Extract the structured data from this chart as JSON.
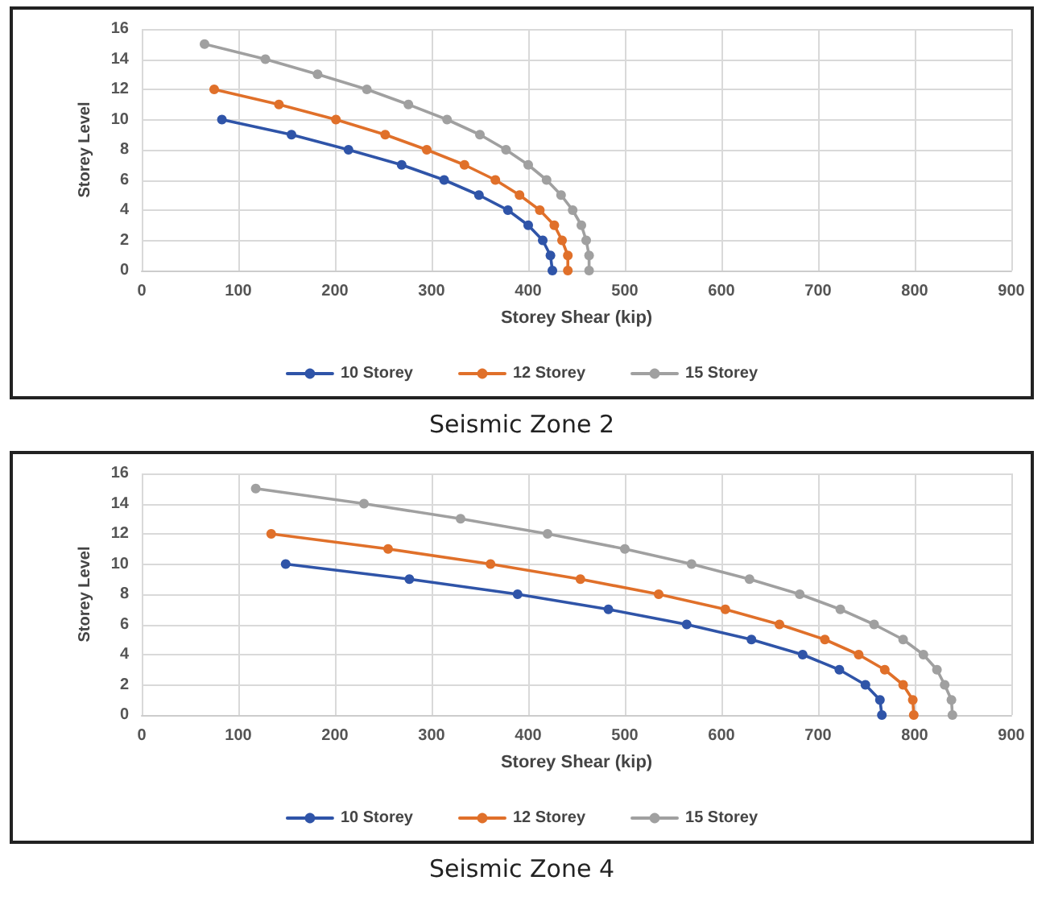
{
  "chart_data": [
    {
      "type": "line",
      "title": "Seismic Zone 2",
      "xlabel": "Storey Shear (kip)",
      "ylabel": "Storey Level",
      "xlim": [
        0,
        900
      ],
      "xticks": [
        0,
        100,
        200,
        300,
        400,
        500,
        600,
        700,
        800,
        900
      ],
      "ylim": [
        0,
        16
      ],
      "yticks": [
        0,
        2,
        4,
        6,
        8,
        10,
        12,
        14,
        16
      ],
      "grid": true,
      "legend": "bottom",
      "marker": "circle",
      "line_style": "solid",
      "series": [
        {
          "name": "10 Storey",
          "color": "#2f54a8",
          "x": [
            83,
            155,
            214,
            269,
            313,
            349,
            379,
            400,
            415,
            423,
            425
          ],
          "values": [
            10,
            9,
            8,
            7,
            6,
            5,
            4,
            3,
            2,
            1,
            0
          ]
        },
        {
          "name": "12 Storey",
          "color": "#e0702a",
          "x": [
            75,
            142,
            201,
            252,
            295,
            334,
            366,
            391,
            412,
            427,
            435,
            441,
            441
          ],
          "values": [
            12,
            11,
            10,
            9,
            8,
            7,
            6,
            5,
            4,
            3,
            2,
            1,
            0
          ]
        },
        {
          "name": "15 Storey",
          "color": "#a0a0a0",
          "x": [
            65,
            128,
            182,
            233,
            276,
            316,
            350,
            377,
            400,
            419,
            434,
            446,
            455,
            460,
            463,
            463
          ],
          "values": [
            15,
            14,
            13,
            12,
            11,
            10,
            9,
            8,
            7,
            6,
            5,
            4,
            3,
            2,
            1,
            0
          ]
        }
      ]
    },
    {
      "type": "line",
      "title": "Seismic Zone 4",
      "xlabel": "Storey Shear (kip)",
      "ylabel": "Storey Level",
      "xlim": [
        0,
        900
      ],
      "xticks": [
        0,
        100,
        200,
        300,
        400,
        500,
        600,
        700,
        800,
        900
      ],
      "ylim": [
        0,
        16
      ],
      "yticks": [
        0,
        2,
        4,
        6,
        8,
        10,
        12,
        14,
        16
      ],
      "grid": true,
      "legend": "bottom",
      "marker": "circle",
      "line_style": "solid",
      "series": [
        {
          "name": "10 Storey",
          "color": "#2f54a8",
          "x": [
            149,
            277,
            389,
            483,
            564,
            631,
            684,
            722,
            749,
            764,
            766
          ],
          "values": [
            10,
            9,
            8,
            7,
            6,
            5,
            4,
            3,
            2,
            1,
            0
          ]
        },
        {
          "name": "12 Storey",
          "color": "#e0702a",
          "x": [
            134,
            255,
            361,
            454,
            535,
            604,
            660,
            707,
            742,
            769,
            788,
            798,
            799
          ],
          "values": [
            12,
            11,
            10,
            9,
            8,
            7,
            6,
            5,
            4,
            3,
            2,
            1,
            0
          ]
        },
        {
          "name": "15 Storey",
          "color": "#a0a0a0",
          "x": [
            118,
            230,
            330,
            420,
            500,
            569,
            629,
            681,
            723,
            758,
            788,
            809,
            823,
            831,
            838,
            839
          ],
          "values": [
            15,
            14,
            13,
            12,
            11,
            10,
            9,
            8,
            7,
            6,
            5,
            4,
            3,
            2,
            1,
            0
          ]
        }
      ]
    }
  ]
}
